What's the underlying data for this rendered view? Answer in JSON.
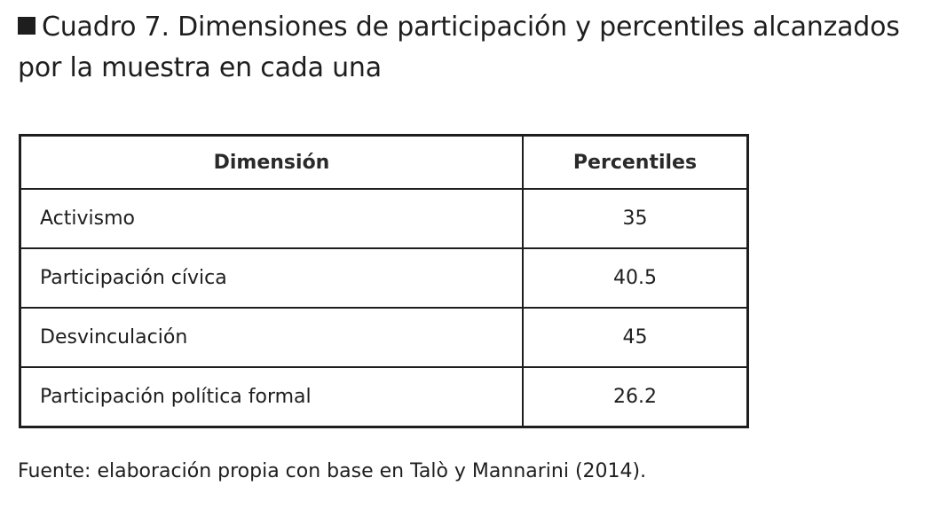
{
  "caption": {
    "text": "Cuadro 7. Dimensiones de participación y percentiles alcanzados por la muestra en cada una"
  },
  "table": {
    "headers": [
      "Dimensión",
      "Percentiles"
    ],
    "rows": [
      {
        "dimension": "Activismo",
        "percentile": "35"
      },
      {
        "dimension": "Participación cívica",
        "percentile": "40.5"
      },
      {
        "dimension": "Desvinculación",
        "percentile": "45"
      },
      {
        "dimension": "Participación política formal",
        "percentile": "26.2"
      }
    ]
  },
  "source": {
    "text": "Fuente: elaboración propia con base en Talò y Mannarini (2014)."
  }
}
